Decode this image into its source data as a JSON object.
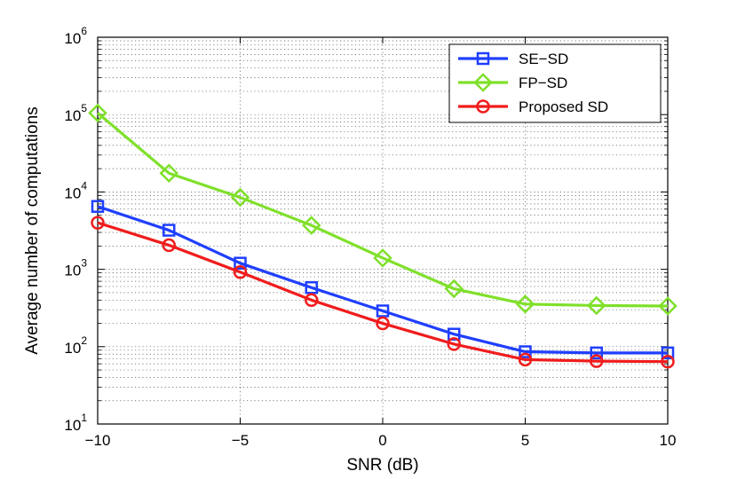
{
  "chart_data": {
    "type": "line",
    "title": "",
    "xlabel": "SNR (dB)",
    "ylabel": "Average number of computations",
    "xlim": [
      -10,
      10
    ],
    "ylim": [
      10,
      1000000
    ],
    "yscale": "log",
    "grid": true,
    "legend_position": "top-right",
    "x_ticks": [
      -10,
      -5,
      0,
      5,
      10
    ],
    "x_tick_labels": [
      "−10",
      "−5",
      "0",
      "5",
      "10"
    ],
    "y_tick_exponents": [
      1,
      2,
      3,
      4,
      5,
      6
    ],
    "y_tick_base": "10",
    "x": [
      -10,
      -7.5,
      -5,
      -2.5,
      0,
      2.5,
      5,
      7.5,
      10
    ],
    "series": [
      {
        "name": "SE−SD",
        "color": "#1f3fff",
        "marker": "square",
        "values": [
          6500,
          3200,
          1200,
          580,
          290,
          145,
          86,
          83,
          83
        ]
      },
      {
        "name": "FP−SD",
        "color": "#7fe02a",
        "marker": "diamond",
        "values": [
          105000,
          17500,
          8500,
          3700,
          1400,
          560,
          355,
          340,
          335
        ]
      },
      {
        "name": "Proposed SD",
        "color": "#f01c1c",
        "marker": "circle",
        "values": [
          4000,
          2050,
          920,
          400,
          200,
          108,
          68,
          65,
          64
        ]
      }
    ]
  }
}
